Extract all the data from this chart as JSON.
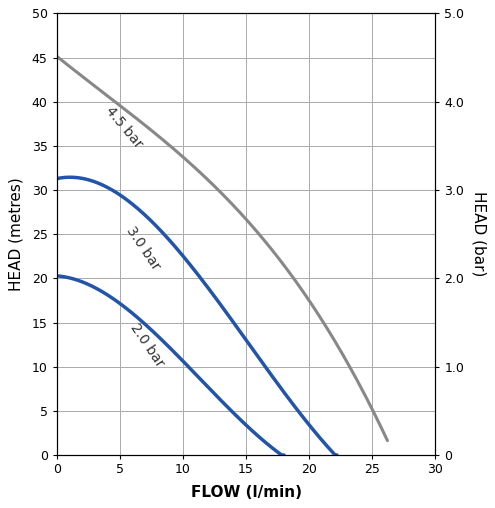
{
  "title": "",
  "xlabel": "FLOW (l/min)",
  "ylabel_left": "HEAD (metres)",
  "ylabel_right": "HEAD (bar)",
  "xlim": [
    0,
    30
  ],
  "ylim_left": [
    0,
    50
  ],
  "ylim_right": [
    0,
    5.0
  ],
  "xticks": [
    0,
    5,
    10,
    15,
    20,
    25,
    30
  ],
  "yticks_left": [
    0,
    5,
    10,
    15,
    20,
    25,
    30,
    35,
    40,
    45,
    50
  ],
  "yticks_right_vals": [
    0,
    1.0,
    2.0,
    3.0,
    4.0,
    5.0
  ],
  "yticks_right_labels": [
    "0",
    "1.0",
    "2.0",
    "3.0",
    "4.0",
    "5.0"
  ],
  "line_45bar": {
    "x": [
      0,
      3,
      6,
      9,
      12,
      15,
      18,
      21,
      24,
      26.2
    ],
    "y": [
      45,
      42,
      38.5,
      35,
      31,
      26.5,
      21.5,
      15.5,
      8.0,
      1.5
    ],
    "color": "#888888",
    "linewidth": 2.2,
    "label": "4.5 bar",
    "ann_x": 3.8,
    "ann_y": 39.0,
    "ann_rot": -50
  },
  "line_30bar": {
    "x": [
      0,
      3,
      6,
      9,
      12,
      15,
      17,
      18,
      22
    ],
    "y": [
      32,
      30,
      27.5,
      24.5,
      20.5,
      14.5,
      8.0,
      5.0,
      1.0
    ],
    "color": "#2255aa",
    "linewidth": 2.5,
    "label": "3.0 bar",
    "ann_x": 5.5,
    "ann_y": 25.5,
    "ann_rot": -56
  },
  "line_20bar": {
    "x": [
      0,
      3,
      6,
      9,
      12,
      14,
      16,
      18
    ],
    "y": [
      20.5,
      18.5,
      16.0,
      12.5,
      8.0,
      4.5,
      1.5,
      0.2
    ],
    "color": "#2255aa",
    "linewidth": 2.5,
    "label": "2.0 bar",
    "ann_x": 5.8,
    "ann_y": 14.5,
    "ann_rot": -56
  },
  "grid_color": "#aaaaaa",
  "grid_linewidth": 0.7,
  "bg_color": "#ffffff",
  "label_fontsize": 11,
  "tick_fontsize": 9,
  "annotation_fontsize": 10
}
